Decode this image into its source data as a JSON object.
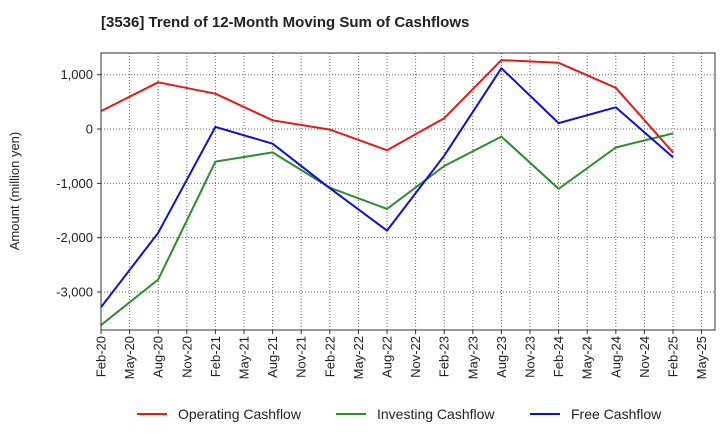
{
  "chart_data": {
    "type": "line",
    "title": "[3536]  Trend of 12-Month Moving Sum of Cashflows",
    "xlabel": "",
    "ylabel": "Amount (million yen)",
    "x_tick_labels": [
      "Feb-20",
      "May-20",
      "Aug-20",
      "Nov-20",
      "Feb-21",
      "May-21",
      "Aug-21",
      "Nov-21",
      "Feb-22",
      "May-22",
      "Aug-22",
      "Nov-22",
      "Feb-23",
      "May-23",
      "Aug-23",
      "Nov-23",
      "Feb-24",
      "May-24",
      "Aug-24",
      "Nov-24",
      "Feb-25",
      "May-25"
    ],
    "y_ticks": [
      1000,
      0,
      -1000,
      -2000,
      -3000
    ],
    "y_tick_labels": [
      "1,000",
      "0",
      "-1,000",
      "-2,000",
      "-3,000"
    ],
    "ylim": [
      -3700,
      1400
    ],
    "grid": true,
    "legend_position": "bottom",
    "categories": [
      "Feb-20",
      "Aug-20",
      "Feb-21",
      "Aug-21",
      "Feb-22",
      "Aug-22",
      "Feb-23",
      "Aug-23",
      "Feb-24",
      "Aug-24",
      "Feb-25"
    ],
    "series": [
      {
        "name": "Operating Cashflow",
        "color": "#e41a1c",
        "values": [
          330,
          860,
          650,
          160,
          -10,
          -390,
          200,
          1270,
          1220,
          760,
          -430
        ]
      },
      {
        "name": "Investing Cashflow",
        "color": "#2e8b2e",
        "values": [
          -3610,
          -2770,
          -600,
          -430,
          -1080,
          -1470,
          -680,
          -140,
          -1100,
          -340,
          -80
        ]
      },
      {
        "name": "Free Cashflow",
        "color": "#1010d0",
        "values": [
          -3280,
          -1910,
          40,
          -270,
          -1090,
          -1870,
          -490,
          1120,
          110,
          400,
          -520
        ]
      }
    ]
  }
}
